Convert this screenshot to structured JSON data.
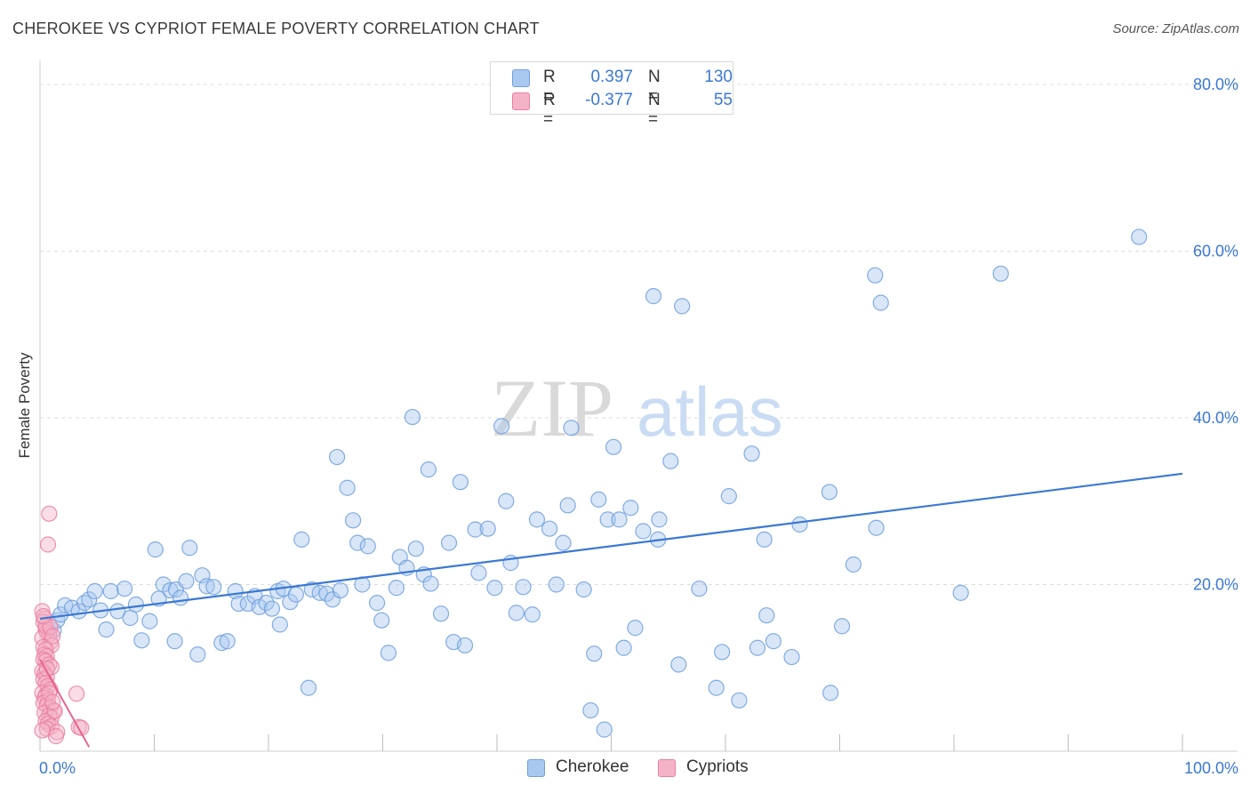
{
  "title": "CHEROKEE VS CYPRIOT FEMALE POVERTY CORRELATION CHART",
  "source": "Source: ZipAtlas.com",
  "watermark": {
    "zip": "ZIP",
    "atlas": "atlas"
  },
  "legend": {
    "rows": [
      {
        "series": "Cherokee",
        "r_label": "R =",
        "r_value": "0.397",
        "n_label": "N =",
        "n_value": "130"
      },
      {
        "series": "Cypriots",
        "r_label": "R =",
        "r_value": "-0.377",
        "n_label": "N =",
        "n_value": "55"
      }
    ]
  },
  "bottom_legend": {
    "items": [
      "Cherokee",
      "Cypriots"
    ]
  },
  "colors": {
    "cherokee_fill": "#a9c8f0",
    "cherokee_stroke": "#6f9fdc",
    "cherokee_line": "#3b78d4",
    "cypriot_fill": "#f5b3c8",
    "cypriot_stroke": "#ea7ea1",
    "cypriot_line": "#e8638f",
    "tick_text": "#3b78d4",
    "grid": "#dddddd"
  },
  "chart_data": {
    "type": "scatter",
    "title": "CHEROKEE VS CYPRIOT FEMALE POVERTY CORRELATION CHART",
    "xlabel": "",
    "ylabel": "Female Poverty",
    "xlim": [
      0,
      100
    ],
    "ylim": [
      0,
      80
    ],
    "x_tick_labels": [
      "0.0%",
      "100.0%"
    ],
    "y_ticks": [
      20,
      40,
      60,
      80
    ],
    "y_tick_labels": [
      "20.0%",
      "40.0%",
      "60.0%",
      "80.0%"
    ],
    "grid": true,
    "series": [
      {
        "name": "Cherokee",
        "r": 0.397,
        "n": 130,
        "trend": {
          "x": [
            0,
            100
          ],
          "y": [
            15.9,
            33.3
          ]
        },
        "points": [
          [
            1.2,
            14.5
          ],
          [
            1.5,
            15.7
          ],
          [
            1.8,
            16.4
          ],
          [
            2.2,
            17.5
          ],
          [
            2.8,
            17.2
          ],
          [
            3.4,
            16.8
          ],
          [
            3.9,
            17.8
          ],
          [
            4.3,
            18.2
          ],
          [
            4.8,
            19.2
          ],
          [
            5.3,
            16.9
          ],
          [
            5.8,
            14.6
          ],
          [
            6.2,
            19.2
          ],
          [
            6.8,
            16.8
          ],
          [
            7.4,
            19.5
          ],
          [
            7.9,
            16.0
          ],
          [
            8.4,
            17.6
          ],
          [
            8.9,
            13.3
          ],
          [
            9.6,
            15.6
          ],
          [
            10.1,
            24.2
          ],
          [
            10.4,
            18.3
          ],
          [
            10.8,
            20.0
          ],
          [
            11.4,
            19.3
          ],
          [
            11.9,
            19.4
          ],
          [
            12.3,
            18.4
          ],
          [
            12.8,
            20.4
          ],
          [
            13.1,
            24.4
          ],
          [
            13.8,
            11.6
          ],
          [
            14.2,
            21.1
          ],
          [
            14.6,
            19.8
          ],
          [
            15.2,
            19.7
          ],
          [
            15.9,
            13.0
          ],
          [
            16.4,
            13.2
          ],
          [
            17.1,
            19.2
          ],
          [
            17.4,
            17.7
          ],
          [
            18.2,
            17.7
          ],
          [
            18.8,
            18.6
          ],
          [
            19.2,
            17.3
          ],
          [
            19.8,
            17.8
          ],
          [
            20.3,
            17.1
          ],
          [
            20.8,
            19.2
          ],
          [
            21.3,
            19.5
          ],
          [
            21.9,
            17.9
          ],
          [
            22.4,
            18.8
          ],
          [
            22.9,
            25.4
          ],
          [
            23.5,
            7.6
          ],
          [
            23.8,
            19.4
          ],
          [
            24.5,
            19.0
          ],
          [
            25.1,
            18.9
          ],
          [
            25.6,
            18.2
          ],
          [
            26.0,
            35.3
          ],
          [
            26.3,
            19.3
          ],
          [
            26.9,
            31.6
          ],
          [
            27.4,
            27.7
          ],
          [
            27.8,
            25.0
          ],
          [
            28.2,
            20.0
          ],
          [
            28.7,
            24.6
          ],
          [
            29.5,
            17.8
          ],
          [
            29.9,
            15.7
          ],
          [
            30.5,
            11.8
          ],
          [
            31.2,
            19.6
          ],
          [
            31.5,
            23.3
          ],
          [
            32.1,
            22.0
          ],
          [
            32.6,
            40.1
          ],
          [
            32.9,
            24.3
          ],
          [
            33.6,
            21.2
          ],
          [
            34.2,
            20.1
          ],
          [
            35.1,
            16.5
          ],
          [
            35.8,
            25.0
          ],
          [
            36.2,
            13.1
          ],
          [
            36.8,
            32.3
          ],
          [
            37.2,
            12.7
          ],
          [
            38.1,
            26.6
          ],
          [
            38.4,
            21.4
          ],
          [
            39.2,
            26.7
          ],
          [
            39.8,
            19.6
          ],
          [
            40.4,
            39.0
          ],
          [
            40.8,
            30.0
          ],
          [
            41.2,
            22.6
          ],
          [
            41.7,
            16.6
          ],
          [
            42.3,
            19.7
          ],
          [
            43.1,
            16.4
          ],
          [
            43.5,
            27.8
          ],
          [
            44.6,
            26.7
          ],
          [
            45.2,
            20.0
          ],
          [
            45.8,
            25.0
          ],
          [
            46.2,
            29.5
          ],
          [
            46.5,
            38.8
          ],
          [
            47.6,
            19.4
          ],
          [
            48.2,
            4.9
          ],
          [
            48.5,
            11.7
          ],
          [
            48.9,
            30.2
          ],
          [
            49.4,
            2.6
          ],
          [
            49.7,
            27.8
          ],
          [
            50.2,
            36.5
          ],
          [
            50.7,
            27.8
          ],
          [
            51.1,
            12.4
          ],
          [
            51.7,
            29.2
          ],
          [
            52.1,
            14.8
          ],
          [
            52.8,
            26.4
          ],
          [
            53.7,
            54.6
          ],
          [
            54.1,
            25.4
          ],
          [
            54.2,
            27.8
          ],
          [
            55.2,
            34.8
          ],
          [
            55.9,
            10.4
          ],
          [
            56.2,
            53.4
          ],
          [
            57.7,
            19.5
          ],
          [
            59.2,
            7.6
          ],
          [
            59.7,
            11.9
          ],
          [
            60.3,
            30.6
          ],
          [
            61.2,
            6.1
          ],
          [
            62.3,
            35.7
          ],
          [
            62.8,
            12.4
          ],
          [
            63.4,
            25.4
          ],
          [
            63.6,
            16.3
          ],
          [
            64.2,
            13.2
          ],
          [
            65.8,
            11.3
          ],
          [
            69.1,
            31.1
          ],
          [
            69.2,
            7.0
          ],
          [
            70.2,
            15.0
          ],
          [
            71.2,
            22.4
          ],
          [
            73.1,
            57.1
          ],
          [
            73.2,
            26.8
          ],
          [
            73.6,
            53.8
          ],
          [
            80.6,
            19.0
          ],
          [
            84.1,
            57.3
          ],
          [
            96.2,
            61.7
          ],
          [
            11.8,
            13.2
          ],
          [
            21.0,
            15.2
          ],
          [
            34.0,
            33.8
          ],
          [
            66.5,
            27.2
          ]
        ]
      },
      {
        "name": "Cypriots",
        "r": -0.377,
        "n": 55,
        "trend": {
          "x": [
            0,
            4.3
          ],
          "y": [
            11.0,
            0.5
          ]
        },
        "points": [
          [
            0.2,
            16.8
          ],
          [
            0.4,
            15.9
          ],
          [
            0.3,
            15.5
          ],
          [
            0.5,
            14.6
          ],
          [
            0.6,
            14.3
          ],
          [
            0.8,
            14.0
          ],
          [
            0.2,
            13.6
          ],
          [
            0.9,
            13.1
          ],
          [
            1.0,
            12.7
          ],
          [
            0.3,
            12.5
          ],
          [
            0.5,
            12.2
          ],
          [
            0.4,
            11.6
          ],
          [
            0.6,
            11.4
          ],
          [
            0.3,
            11.0
          ],
          [
            0.5,
            10.8
          ],
          [
            0.8,
            10.4
          ],
          [
            1.0,
            10.1
          ],
          [
            0.2,
            9.6
          ],
          [
            0.4,
            9.3
          ],
          [
            0.6,
            8.9
          ],
          [
            0.3,
            8.6
          ],
          [
            0.5,
            8.2
          ],
          [
            0.7,
            7.8
          ],
          [
            0.9,
            7.4
          ],
          [
            0.2,
            7.0
          ],
          [
            0.5,
            6.7
          ],
          [
            0.4,
            6.4
          ],
          [
            0.7,
            6.1
          ],
          [
            0.3,
            5.8
          ],
          [
            0.6,
            5.5
          ],
          [
            0.9,
            5.2
          ],
          [
            1.2,
            4.9
          ],
          [
            0.4,
            4.6
          ],
          [
            0.8,
            4.3
          ],
          [
            1.0,
            4.0
          ],
          [
            0.5,
            3.6
          ],
          [
            0.7,
            3.3
          ],
          [
            1.0,
            3.0
          ],
          [
            0.6,
            2.7
          ],
          [
            1.5,
            2.3
          ],
          [
            1.4,
            1.8
          ],
          [
            0.8,
            28.5
          ],
          [
            0.7,
            24.8
          ],
          [
            3.2,
            6.9
          ],
          [
            3.4,
            2.9
          ],
          [
            3.6,
            2.8
          ],
          [
            1.3,
            4.8
          ],
          [
            0.5,
            15.0
          ],
          [
            0.9,
            14.9
          ],
          [
            1.1,
            13.8
          ],
          [
            0.2,
            2.5
          ],
          [
            0.6,
            9.9
          ],
          [
            0.8,
            7.0
          ],
          [
            1.1,
            5.9
          ],
          [
            0.3,
            16.2
          ]
        ]
      }
    ]
  }
}
